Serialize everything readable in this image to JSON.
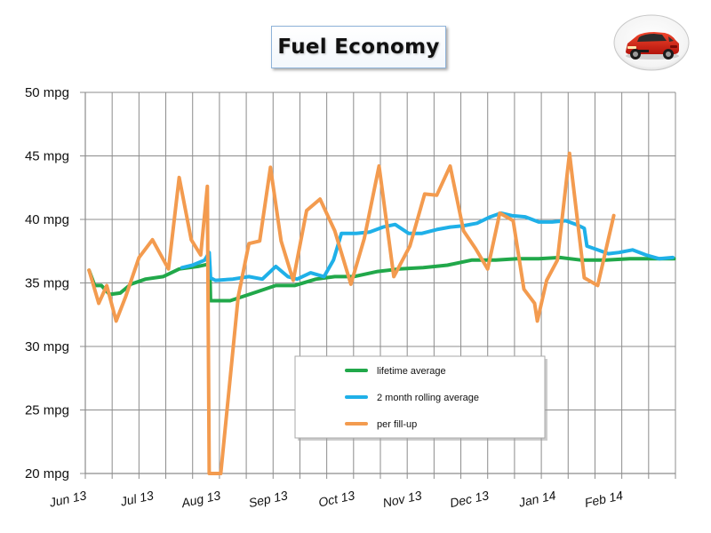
{
  "chart_data": {
    "type": "line",
    "title": "Fuel Economy",
    "y_unit": "mpg",
    "ylim": [
      20,
      50
    ],
    "yticks": [
      {
        "value": 20,
        "label": "20 mpg"
      },
      {
        "value": 25,
        "label": "25 mpg"
      },
      {
        "value": 30,
        "label": "30 mpg"
      },
      {
        "value": 35,
        "label": "35 mpg"
      },
      {
        "value": 40,
        "label": "40 mpg"
      },
      {
        "value": 45,
        "label": "45 mpg"
      },
      {
        "value": 50,
        "label": "50 mpg"
      }
    ],
    "xticks": [
      "Jun 13",
      "Jul 13",
      "Aug 13",
      "Sep 13",
      "Oct 13",
      "Nov 13",
      "Dec 13",
      "Jan 14",
      "Feb 14"
    ],
    "grid": true,
    "legend_position": "bottom-center",
    "series": [
      {
        "name": "lifetime average",
        "color": "#21a84a",
        "points": [
          [
            0.14,
            36.0
          ],
          [
            0.35,
            34.8
          ],
          [
            0.6,
            34.8
          ],
          [
            0.9,
            34.1
          ],
          [
            1.3,
            34.2
          ],
          [
            1.7,
            34.9
          ],
          [
            2.25,
            35.3
          ],
          [
            2.9,
            35.5
          ],
          [
            3.5,
            36.1
          ],
          [
            4.2,
            36.3
          ],
          [
            4.64,
            36.5
          ],
          [
            4.67,
            33.6
          ],
          [
            5.4,
            33.6
          ],
          [
            6.4,
            34.3
          ],
          [
            7.1,
            34.8
          ],
          [
            7.8,
            34.8
          ],
          [
            8.6,
            35.3
          ],
          [
            9.3,
            35.5
          ],
          [
            10.0,
            35.5
          ],
          [
            10.9,
            35.9
          ],
          [
            11.7,
            36.1
          ],
          [
            12.6,
            36.2
          ],
          [
            13.5,
            36.4
          ],
          [
            14.4,
            36.8
          ],
          [
            15.3,
            36.8
          ],
          [
            16.1,
            36.9
          ],
          [
            16.9,
            36.9
          ],
          [
            17.7,
            37.0
          ],
          [
            18.5,
            36.8
          ],
          [
            19.4,
            36.8
          ],
          [
            20.3,
            36.9
          ],
          [
            21.1,
            36.9
          ],
          [
            21.95,
            36.9
          ]
        ]
      },
      {
        "name": "2 month rolling average",
        "color": "#1fb0e8",
        "points": [
          [
            3.6,
            36.2
          ],
          [
            4.0,
            36.4
          ],
          [
            4.45,
            36.8
          ],
          [
            4.62,
            37.4
          ],
          [
            4.67,
            35.4
          ],
          [
            4.85,
            35.2
          ],
          [
            5.5,
            35.3
          ],
          [
            6.1,
            35.5
          ],
          [
            6.6,
            35.3
          ],
          [
            7.1,
            36.3
          ],
          [
            7.55,
            35.5
          ],
          [
            7.9,
            35.3
          ],
          [
            8.4,
            35.8
          ],
          [
            8.9,
            35.5
          ],
          [
            9.25,
            36.8
          ],
          [
            9.55,
            38.9
          ],
          [
            10.1,
            38.9
          ],
          [
            10.6,
            39.0
          ],
          [
            11.1,
            39.4
          ],
          [
            11.55,
            39.6
          ],
          [
            12.05,
            38.9
          ],
          [
            12.55,
            38.9
          ],
          [
            13.1,
            39.2
          ],
          [
            13.6,
            39.4
          ],
          [
            14.1,
            39.5
          ],
          [
            14.6,
            39.7
          ],
          [
            15.1,
            40.2
          ],
          [
            15.5,
            40.5
          ],
          [
            15.9,
            40.3
          ],
          [
            16.4,
            40.2
          ],
          [
            16.9,
            39.8
          ],
          [
            17.4,
            39.8
          ],
          [
            17.9,
            39.9
          ],
          [
            18.3,
            39.6
          ],
          [
            18.6,
            39.3
          ],
          [
            18.7,
            37.9
          ],
          [
            19.1,
            37.6
          ],
          [
            19.5,
            37.3
          ],
          [
            19.9,
            37.4
          ],
          [
            20.4,
            37.6
          ],
          [
            20.9,
            37.2
          ],
          [
            21.4,
            36.9
          ],
          [
            21.9,
            37.0
          ]
        ]
      },
      {
        "name": "per fill-up",
        "color": "#f39b4f",
        "points": [
          [
            0.14,
            36.0
          ],
          [
            0.5,
            33.4
          ],
          [
            0.8,
            34.8
          ],
          [
            1.15,
            32.0
          ],
          [
            1.5,
            33.9
          ],
          [
            2.0,
            37.0
          ],
          [
            2.5,
            38.4
          ],
          [
            3.1,
            36.1
          ],
          [
            3.5,
            43.3
          ],
          [
            3.95,
            38.4
          ],
          [
            4.3,
            37.2
          ],
          [
            4.55,
            42.6
          ],
          [
            4.62,
            20.0
          ],
          [
            4.85,
            20.0
          ],
          [
            5.05,
            20.0
          ],
          [
            5.7,
            33.9
          ],
          [
            6.1,
            38.1
          ],
          [
            6.5,
            38.3
          ],
          [
            6.9,
            44.1
          ],
          [
            7.3,
            38.3
          ],
          [
            7.75,
            35.2
          ],
          [
            8.25,
            40.7
          ],
          [
            8.75,
            41.6
          ],
          [
            9.3,
            39.1
          ],
          [
            9.9,
            34.9
          ],
          [
            10.4,
            38.5
          ],
          [
            10.95,
            44.2
          ],
          [
            11.5,
            35.5
          ],
          [
            12.1,
            37.9
          ],
          [
            12.65,
            42.0
          ],
          [
            13.1,
            41.9
          ],
          [
            13.6,
            44.2
          ],
          [
            14.1,
            39.1
          ],
          [
            14.55,
            37.7
          ],
          [
            15.0,
            36.1
          ],
          [
            15.45,
            40.5
          ],
          [
            15.95,
            39.9
          ],
          [
            16.35,
            34.5
          ],
          [
            16.75,
            33.4
          ],
          [
            16.85,
            32.0
          ],
          [
            17.2,
            35.2
          ],
          [
            17.6,
            36.8
          ],
          [
            18.05,
            45.2
          ],
          [
            18.6,
            35.4
          ],
          [
            19.1,
            34.8
          ],
          [
            19.7,
            40.3
          ]
        ]
      }
    ],
    "legend": [
      {
        "label": "lifetime average",
        "color": "#21a84a"
      },
      {
        "label": "2 month rolling average",
        "color": "#1fb0e8"
      },
      {
        "label": "per fill-up",
        "color": "#f39b4f"
      }
    ]
  }
}
